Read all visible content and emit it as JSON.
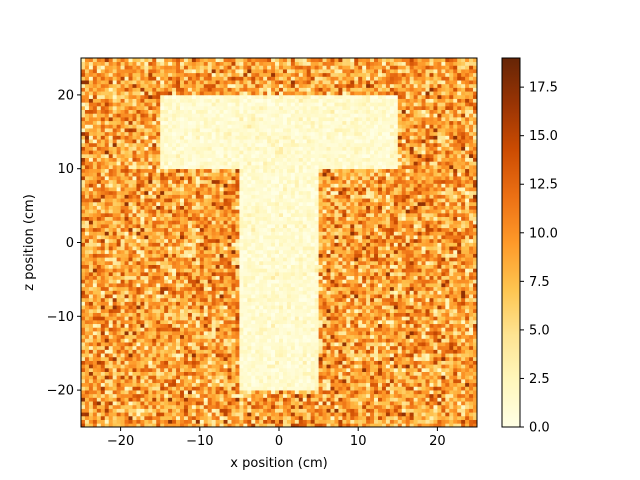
{
  "chart_data": {
    "type": "heatmap",
    "title": "",
    "xlabel": "x position (cm)",
    "ylabel": "z position (cm)",
    "xlim": [
      -25,
      25
    ],
    "ylim": [
      -25,
      25
    ],
    "grid": false,
    "xticks": [
      -20,
      -10,
      0,
      10,
      20
    ],
    "xtick_labels": [
      "−20",
      "−10",
      "0",
      "10",
      "20"
    ],
    "yticks": [
      -20,
      -10,
      0,
      10,
      20
    ],
    "ytick_labels": [
      "−20",
      "−10",
      "0",
      "10",
      "20"
    ],
    "bins": {
      "nx": 100,
      "nz": 100,
      "bin_width_cm": 0.5
    },
    "regions": [
      {
        "name": "background",
        "mean_value": 9.0,
        "range": [
          2,
          17
        ]
      },
      {
        "name": "T-bar",
        "x_range": [
          -15,
          15
        ],
        "z_range": [
          10,
          20
        ],
        "mean_value": 1.3,
        "range": [
          0,
          4
        ]
      },
      {
        "name": "T-stem",
        "x_range": [
          -5,
          5
        ],
        "z_range": [
          -20,
          10
        ],
        "mean_value": 1.3,
        "range": [
          0,
          4
        ]
      }
    ],
    "colorbar": {
      "colormap": "YlOrBr",
      "min": 0,
      "max": 19,
      "ticks": [
        0,
        2.5,
        5,
        7.5,
        10,
        12.5,
        15,
        17.5
      ],
      "tick_labels": [
        "0.0",
        "2.5",
        "5.0",
        "7.5",
        "10.0",
        "12.5",
        "15.0",
        "17.5"
      ]
    },
    "colormap_stops": [
      {
        "t": 0.0,
        "color": "#ffffe5"
      },
      {
        "t": 0.125,
        "color": "#fff7bc"
      },
      {
        "t": 0.25,
        "color": "#fee391"
      },
      {
        "t": 0.375,
        "color": "#fec44f"
      },
      {
        "t": 0.5,
        "color": "#fe9929"
      },
      {
        "t": 0.625,
        "color": "#ec7014"
      },
      {
        "t": 0.75,
        "color": "#cc4c02"
      },
      {
        "t": 0.875,
        "color": "#993404"
      },
      {
        "t": 1.0,
        "color": "#662506"
      }
    ]
  }
}
